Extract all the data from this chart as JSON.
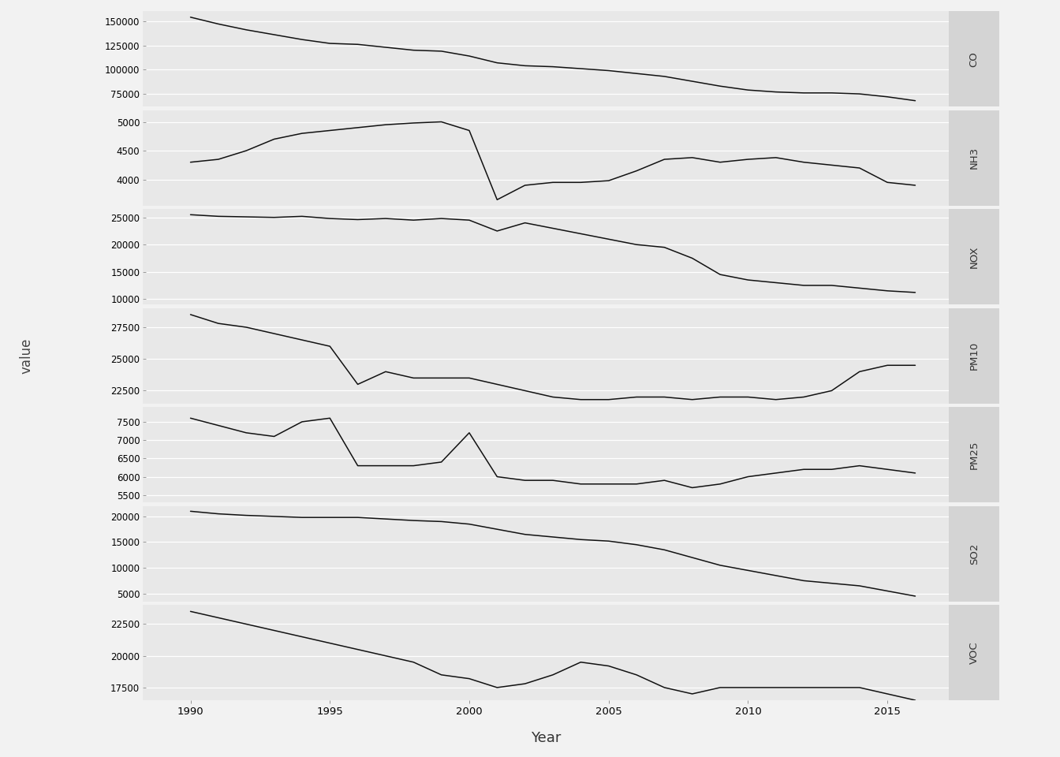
{
  "pollutants": [
    "CO",
    "NH3",
    "NOX",
    "PM10",
    "PM25",
    "SO2",
    "VOC"
  ],
  "years": [
    1990,
    1991,
    1992,
    1993,
    1994,
    1995,
    1996,
    1997,
    1998,
    1999,
    2000,
    2001,
    2002,
    2003,
    2004,
    2005,
    2006,
    2007,
    2008,
    2009,
    2010,
    2011,
    2012,
    2013,
    2014,
    2015,
    2016
  ],
  "data": {
    "CO": [
      154000,
      147000,
      141000,
      136000,
      131000,
      127000,
      126000,
      123000,
      120000,
      119000,
      114000,
      107000,
      104000,
      103000,
      101000,
      99000,
      96000,
      93000,
      88000,
      83000,
      79000,
      77000,
      76000,
      76000,
      75000,
      72000,
      68000
    ],
    "NH3": [
      4300,
      4350,
      4500,
      4700,
      4800,
      4850,
      4900,
      4950,
      4980,
      5000,
      4850,
      3650,
      3900,
      3950,
      3950,
      3980,
      4150,
      4350,
      4380,
      4300,
      4350,
      4380,
      4300,
      4250,
      4200,
      3950,
      3900
    ],
    "NOX": [
      25500,
      25200,
      25100,
      25000,
      25200,
      24800,
      24600,
      24800,
      24500,
      24800,
      24500,
      22500,
      24000,
      23000,
      22000,
      21000,
      20000,
      19500,
      17500,
      14500,
      13500,
      13000,
      12500,
      12500,
      12000,
      11500,
      11200
    ],
    "PM10": [
      28500,
      27800,
      27500,
      27000,
      26500,
      26000,
      23000,
      24000,
      23500,
      23500,
      23500,
      23000,
      22500,
      22000,
      21800,
      21800,
      22000,
      22000,
      21800,
      22000,
      22000,
      21800,
      22000,
      22500,
      24000,
      24500,
      24500
    ],
    "PM25": [
      7600,
      7400,
      7200,
      7100,
      7500,
      7600,
      6300,
      6300,
      6300,
      6400,
      7200,
      6000,
      5900,
      5900,
      5800,
      5800,
      5800,
      5900,
      5700,
      5800,
      6000,
      6100,
      6200,
      6200,
      6300,
      6200,
      6100
    ],
    "SO2": [
      21000,
      20500,
      20200,
      20000,
      19800,
      19800,
      19800,
      19500,
      19200,
      19000,
      18500,
      17500,
      16500,
      16000,
      15500,
      15200,
      14500,
      13500,
      12000,
      10500,
      9500,
      8500,
      7500,
      7000,
      6500,
      5500,
      4500
    ],
    "VOC": [
      23500,
      23000,
      22500,
      22000,
      21500,
      21000,
      20500,
      20000,
      19500,
      18500,
      18200,
      17500,
      17800,
      18500,
      19500,
      19200,
      18500,
      17500,
      17000,
      17500,
      17500,
      17500,
      17500,
      17500,
      17500,
      17000,
      16500
    ]
  },
  "yticks": {
    "CO": [
      75000,
      100000,
      125000,
      150000
    ],
    "NH3": [
      4000,
      4500,
      5000
    ],
    "NOX": [
      10000,
      15000,
      20000,
      25000
    ],
    "PM10": [
      22500,
      25000,
      27500
    ],
    "PM25": [
      5500,
      6000,
      6500,
      7000,
      7500
    ],
    "SO2": [
      5000,
      10000,
      15000,
      20000
    ],
    "VOC": [
      17500,
      20000,
      22500
    ]
  },
  "ylims": {
    "CO": [
      62000,
      160000
    ],
    "NH3": [
      3550,
      5200
    ],
    "NOX": [
      9000,
      26500
    ],
    "PM10": [
      21500,
      29000
    ],
    "PM25": [
      5300,
      7900
    ],
    "SO2": [
      3500,
      22000
    ],
    "VOC": [
      16500,
      24000
    ]
  },
  "fig_bg": "#f2f2f2",
  "panel_bg": "#e8e8e8",
  "strip_bg": "#d4d4d4",
  "grid_color": "#ffffff",
  "line_color": "#111111",
  "xlabel": "Year",
  "ylabel": "value",
  "xticks": [
    1990,
    1995,
    2000,
    2005,
    2010,
    2015
  ],
  "figsize": [
    13.44,
    9.6
  ],
  "dpi": 100
}
